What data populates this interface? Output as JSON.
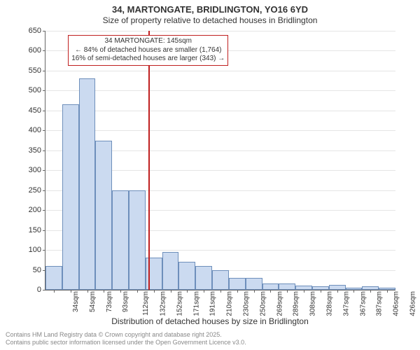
{
  "title": "34, MARTONGATE, BRIDLINGTON, YO16 6YD",
  "subtitle": "Size of property relative to detached houses in Bridlington",
  "ylabel": "Number of detached properties",
  "xlabel": "Distribution of detached houses by size in Bridlington",
  "ylim": [
    0,
    650
  ],
  "ytick_step": 50,
  "bar_fill": "#cbdaf0",
  "bar_stroke": "#6e8fbb",
  "grid_color": "#e5e5e5",
  "vline_color": "#c02020",
  "vline_at_sqm": 145,
  "annotation": {
    "line1": "34 MARTONGATE: 145sqm",
    "line2": "← 84% of detached houses are smaller (1,764)",
    "line3": "16% of semi-detached houses are larger (343) →"
  },
  "categories": [
    "34sqm",
    "54sqm",
    "73sqm",
    "93sqm",
    "112sqm",
    "132sqm",
    "152sqm",
    "171sqm",
    "191sqm",
    "210sqm",
    "230sqm",
    "250sqm",
    "269sqm",
    "289sqm",
    "308sqm",
    "328sqm",
    "347sqm",
    "367sqm",
    "387sqm",
    "406sqm",
    "426sqm"
  ],
  "values": [
    60,
    465,
    530,
    375,
    250,
    250,
    80,
    95,
    70,
    60,
    50,
    30,
    30,
    15,
    15,
    10,
    8,
    12,
    5,
    8,
    5
  ],
  "footer_line1": "Contains HM Land Registry data © Crown copyright and database right 2025.",
  "footer_line2": "Contains public sector information licensed under the Open Government Licence v3.0.",
  "title_fontsize": 13,
  "subtitle_fontsize": 12,
  "label_fontsize": 12,
  "tick_fontsize": 11,
  "annotation_fontsize": 10,
  "footer_fontsize": 9
}
